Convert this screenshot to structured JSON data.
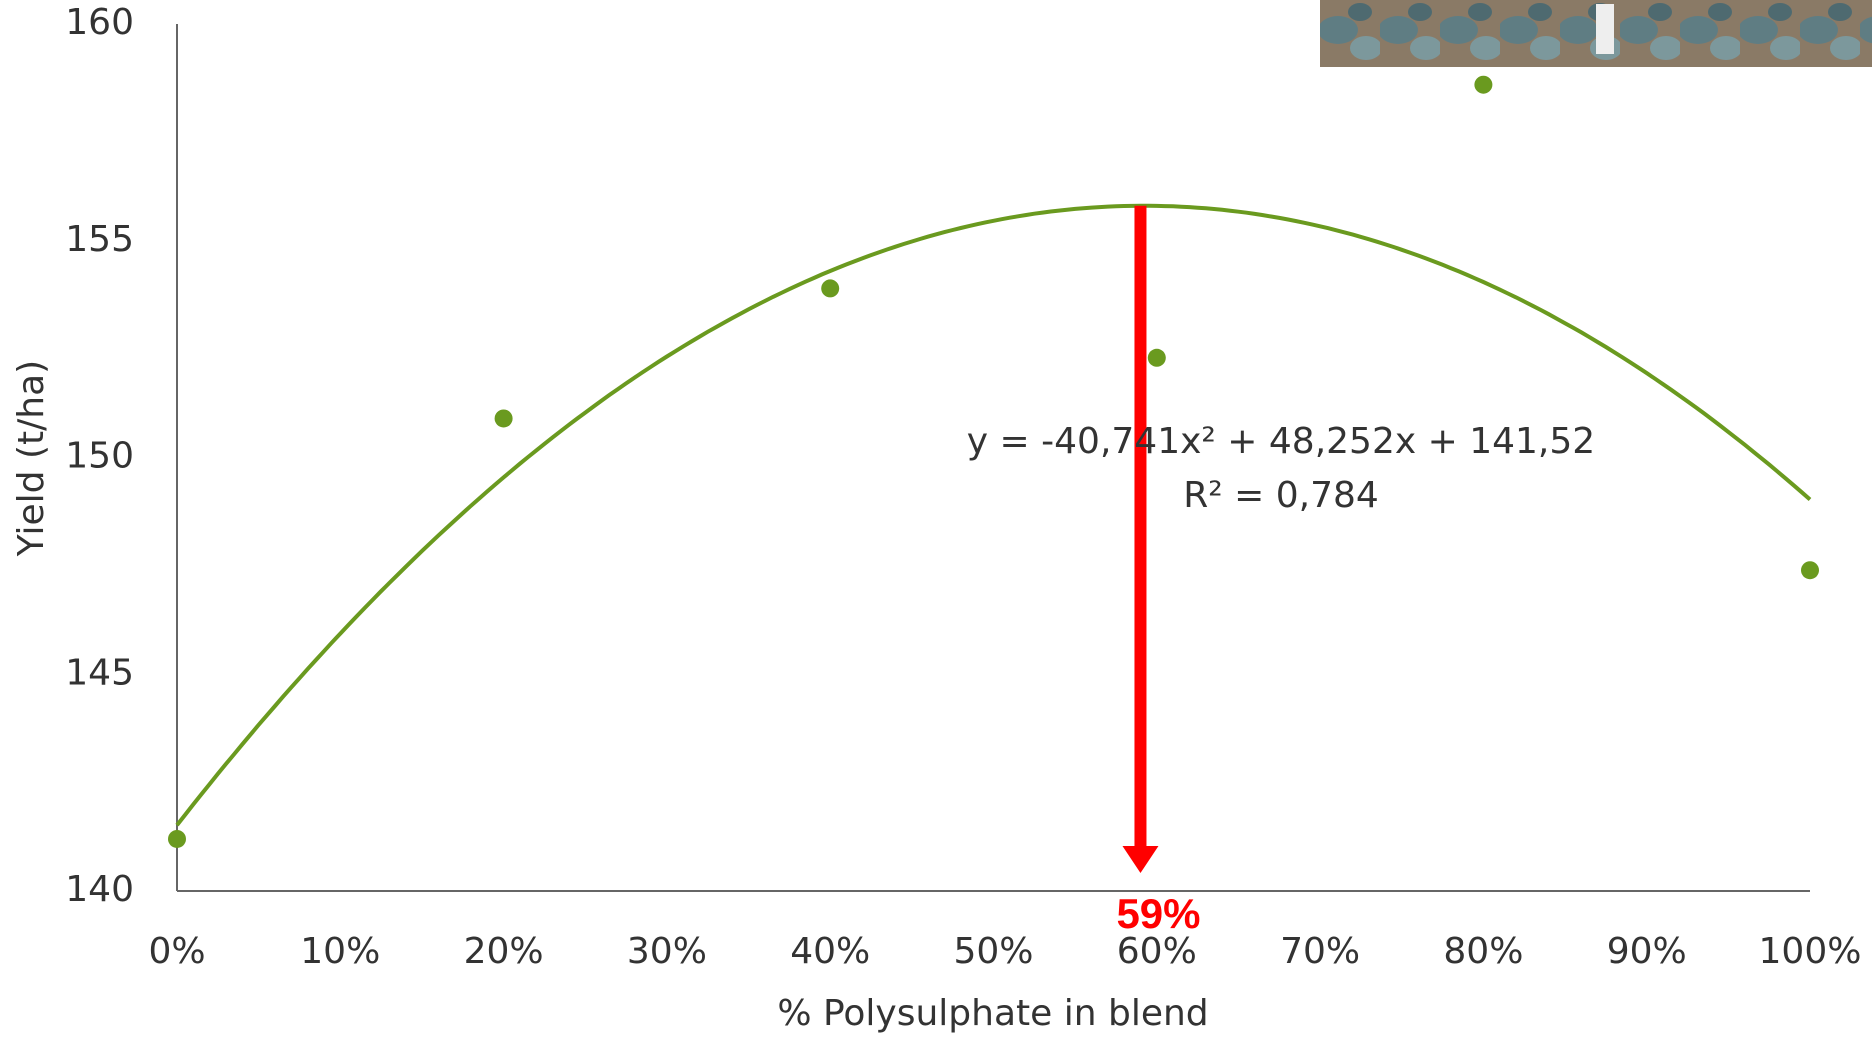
{
  "chart_data": {
    "type": "scatter",
    "x_label": "% Polysulphate in blend",
    "y_label": "Yield (t/ha)",
    "x": [
      0,
      20,
      40,
      60,
      80,
      100
    ],
    "series": [
      {
        "color": "#6a9a1f",
        "values": [
          141.2,
          150.9,
          153.9,
          152.3,
          158.6,
          147.4
        ]
      }
    ],
    "xlim": [
      0,
      100
    ],
    "ylim": [
      140,
      160
    ],
    "xticks": [
      {
        "value": 0,
        "label": "0%"
      },
      {
        "value": 10,
        "label": "10%"
      },
      {
        "value": 20,
        "label": "20%"
      },
      {
        "value": 30,
        "label": "30%"
      },
      {
        "value": 40,
        "label": "40%"
      },
      {
        "value": 50,
        "label": "50%"
      },
      {
        "value": 60,
        "label": "60%"
      },
      {
        "value": 70,
        "label": "70%"
      },
      {
        "value": 80,
        "label": "80%"
      },
      {
        "value": 90,
        "label": "90%"
      },
      {
        "value": 100,
        "label": "100%"
      }
    ],
    "yticks": [
      140,
      145,
      150,
      155,
      160
    ],
    "grid": false,
    "trendline": {
      "color": "#6a9a1f",
      "coefficients": [
        -40.741,
        48.252,
        141.52
      ],
      "equation": "y = -40,741x² + 48,252x + 141,52",
      "r2_label": "R² = 0,784"
    },
    "peak": {
      "x": 59,
      "label": "59%",
      "color": "#ff0000"
    }
  }
}
